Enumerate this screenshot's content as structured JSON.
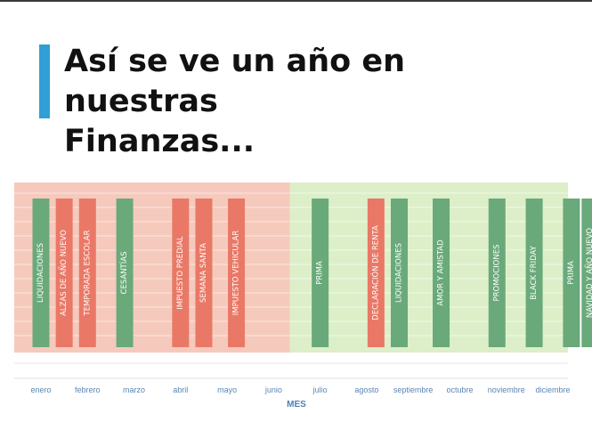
{
  "slide": {
    "title_line1": "Así se ve un año en nuestras",
    "title_line2": "Finanzas...",
    "accent_color": "#2f9fd6"
  },
  "chart_data": {
    "type": "bar",
    "xlabel": "MES",
    "ylabel": "",
    "title": "",
    "months": [
      "enero",
      "febrero",
      "marzo",
      "abril",
      "mayo",
      "junio",
      "julio",
      "agosto",
      "septiembre",
      "octubre",
      "noviembre",
      "diciembre"
    ],
    "periods": [
      {
        "from": "enero",
        "to": "junio",
        "color": "#f6c9bd"
      },
      {
        "from": "julio",
        "to": "diciembre",
        "color": "#dcefc9"
      }
    ],
    "events": [
      {
        "label": "LIQUIDACIONES",
        "month": 1.0,
        "color": "#6aa97a"
      },
      {
        "label": "ALZAS DE AÑO NUEVO",
        "month": 1.5,
        "color": "#ea7866"
      },
      {
        "label": "TEMPORADA ESCOLAR",
        "month": 2.0,
        "color": "#ea7866"
      },
      {
        "label": "CESANTÍAS",
        "month": 2.8,
        "color": "#6aa97a"
      },
      {
        "label": "IMPUESTO PREDIAL",
        "month": 4.0,
        "color": "#ea7866"
      },
      {
        "label": "SEMANA SANTA",
        "month": 4.5,
        "color": "#ea7866"
      },
      {
        "label": "IMPUESTO VEHICULAR",
        "month": 5.2,
        "color": "#ea7866"
      },
      {
        "label": "PRIMA",
        "month": 7.0,
        "color": "#6aa97a"
      },
      {
        "label": "DECLARACIÓN DE RENTA",
        "month": 8.2,
        "color": "#ea7866"
      },
      {
        "label": "LIQUIDACIONES",
        "month": 8.7,
        "color": "#6aa97a"
      },
      {
        "label": "AMOR Y AMISTAD",
        "month": 9.6,
        "color": "#6aa97a"
      },
      {
        "label": "PROMOCIONES",
        "month": 10.8,
        "color": "#6aa97a"
      },
      {
        "label": "BLACK FRIDAY",
        "month": 11.6,
        "color": "#6aa97a"
      },
      {
        "label": "PRIMA",
        "month": 12.4,
        "color": "#6aa97a"
      },
      {
        "label": "NAVIDAD Y AÑO NUEVO",
        "month": 12.8,
        "color": "#6aa97a"
      }
    ]
  }
}
